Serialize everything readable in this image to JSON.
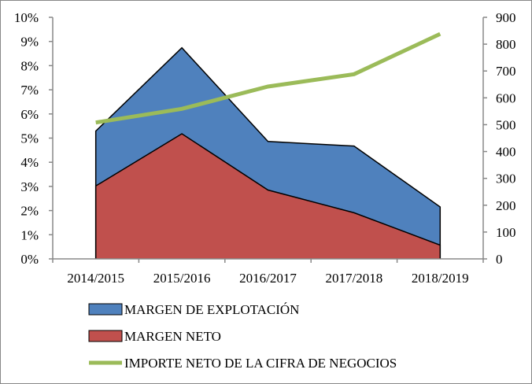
{
  "chart_data": {
    "type": "area",
    "categories": [
      "2014/2015",
      "2015/2016",
      "2016/2017",
      "2017/2018",
      "2018/2019"
    ],
    "series": [
      {
        "name": "MARGEN DE EXPLOTACIÓN",
        "type": "area",
        "axis": "left",
        "unit": "%",
        "color": "#4F81BD",
        "values": [
          5.29,
          8.74,
          4.86,
          4.67,
          2.15
        ]
      },
      {
        "name": "MARGEN NETO",
        "type": "area",
        "axis": "left",
        "unit": "%",
        "color": "#C0504D",
        "values": [
          3.02,
          5.18,
          2.85,
          1.91,
          0.57
        ]
      },
      {
        "name": "IMPORTE NETO DE LA CIFRA DE NEGOCIOS",
        "type": "line",
        "axis": "right",
        "color": "#9BBB59",
        "values": [
          508,
          559,
          642,
          688,
          838
        ]
      }
    ],
    "left_axis": {
      "ylim": [
        0,
        10
      ],
      "ticks": [
        "0%",
        "1%",
        "2%",
        "3%",
        "4%",
        "5%",
        "6%",
        "7%",
        "8%",
        "9%",
        "10%"
      ]
    },
    "right_axis": {
      "ylim": [
        0,
        900
      ],
      "ticks": [
        "0",
        "100",
        "200",
        "300",
        "400",
        "500",
        "600",
        "700",
        "800",
        "900"
      ]
    },
    "legend": "bottom",
    "grid": false
  }
}
